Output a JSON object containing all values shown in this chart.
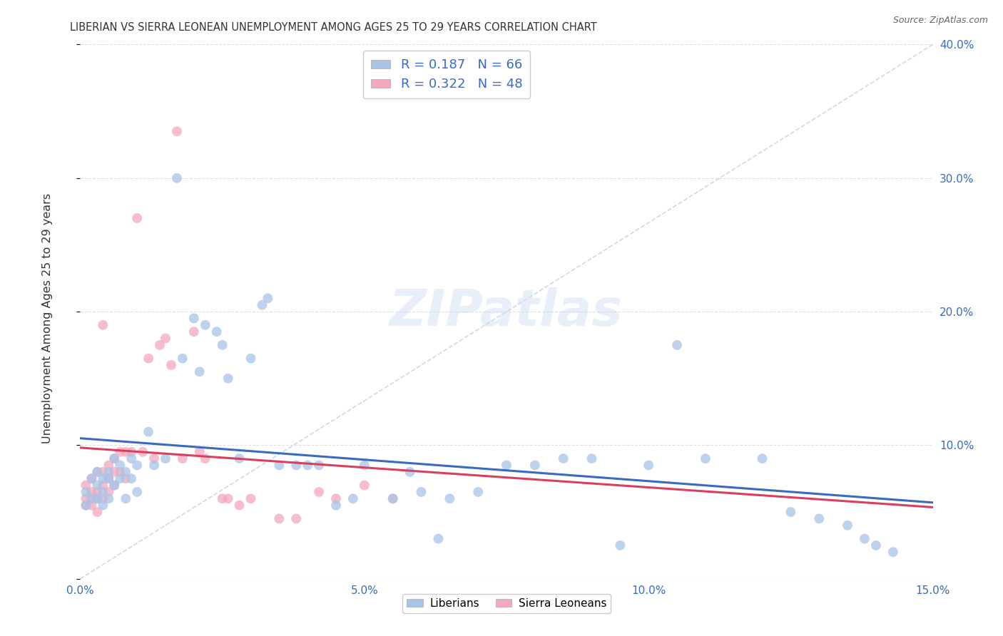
{
  "title": "LIBERIAN VS SIERRA LEONEAN UNEMPLOYMENT AMONG AGES 25 TO 29 YEARS CORRELATION CHART",
  "source": "Source: ZipAtlas.com",
  "ylabel": "Unemployment Among Ages 25 to 29 years",
  "xlim": [
    0.0,
    0.15
  ],
  "ylim": [
    0.0,
    0.4
  ],
  "xticks": [
    0.0,
    0.05,
    0.1,
    0.15
  ],
  "yticks": [
    0.0,
    0.1,
    0.2,
    0.3,
    0.4
  ],
  "xtick_labels": [
    "0.0%",
    "5.0%",
    "10.0%",
    "15.0%"
  ],
  "ytick_labels": [
    "",
    "10.0%",
    "20.0%",
    "30.0%",
    "40.0%"
  ],
  "liberian_color": "#a8c4e8",
  "sierra_leone_color": "#f4a8bc",
  "liberian_line_color": "#3a6bbf",
  "sierra_leone_line_color": "#d94060",
  "background_color": "#ffffff",
  "grid_color": "#dddddd",
  "liberian_R": 0.187,
  "liberian_N": 66,
  "sierra_leone_R": 0.322,
  "sierra_leone_N": 48,
  "liberian_x": [
    0.001,
    0.001,
    0.002,
    0.002,
    0.003,
    0.003,
    0.003,
    0.004,
    0.004,
    0.004,
    0.005,
    0.005,
    0.005,
    0.006,
    0.006,
    0.007,
    0.007,
    0.008,
    0.008,
    0.009,
    0.009,
    0.01,
    0.01,
    0.012,
    0.013,
    0.015,
    0.017,
    0.018,
    0.02,
    0.021,
    0.022,
    0.024,
    0.025,
    0.026,
    0.028,
    0.03,
    0.032,
    0.033,
    0.035,
    0.038,
    0.04,
    0.042,
    0.045,
    0.048,
    0.05,
    0.055,
    0.058,
    0.06,
    0.063,
    0.065,
    0.07,
    0.075,
    0.08,
    0.085,
    0.09,
    0.095,
    0.1,
    0.105,
    0.11,
    0.12,
    0.125,
    0.13,
    0.135,
    0.138,
    0.14,
    0.143
  ],
  "liberian_y": [
    0.065,
    0.055,
    0.075,
    0.06,
    0.08,
    0.07,
    0.06,
    0.075,
    0.065,
    0.055,
    0.08,
    0.06,
    0.075,
    0.09,
    0.07,
    0.085,
    0.075,
    0.08,
    0.06,
    0.09,
    0.075,
    0.085,
    0.065,
    0.11,
    0.085,
    0.09,
    0.3,
    0.165,
    0.195,
    0.155,
    0.19,
    0.185,
    0.175,
    0.15,
    0.09,
    0.165,
    0.205,
    0.21,
    0.085,
    0.085,
    0.085,
    0.085,
    0.055,
    0.06,
    0.085,
    0.06,
    0.08,
    0.065,
    0.03,
    0.06,
    0.065,
    0.085,
    0.085,
    0.09,
    0.09,
    0.025,
    0.085,
    0.175,
    0.09,
    0.09,
    0.05,
    0.045,
    0.04,
    0.03,
    0.025,
    0.02
  ],
  "sierra_leone_x": [
    0.001,
    0.001,
    0.001,
    0.002,
    0.002,
    0.002,
    0.002,
    0.003,
    0.003,
    0.003,
    0.003,
    0.004,
    0.004,
    0.004,
    0.004,
    0.005,
    0.005,
    0.005,
    0.006,
    0.006,
    0.006,
    0.007,
    0.007,
    0.008,
    0.008,
    0.009,
    0.01,
    0.011,
    0.012,
    0.013,
    0.014,
    0.015,
    0.016,
    0.017,
    0.018,
    0.02,
    0.021,
    0.022,
    0.025,
    0.026,
    0.028,
    0.03,
    0.035,
    0.038,
    0.042,
    0.045,
    0.05,
    0.055
  ],
  "sierra_leone_y": [
    0.06,
    0.055,
    0.07,
    0.075,
    0.065,
    0.06,
    0.055,
    0.08,
    0.065,
    0.06,
    0.05,
    0.19,
    0.08,
    0.07,
    0.06,
    0.085,
    0.075,
    0.065,
    0.09,
    0.08,
    0.07,
    0.095,
    0.08,
    0.095,
    0.075,
    0.095,
    0.27,
    0.095,
    0.165,
    0.09,
    0.175,
    0.18,
    0.16,
    0.335,
    0.09,
    0.185,
    0.095,
    0.09,
    0.06,
    0.06,
    0.055,
    0.06,
    0.045,
    0.045,
    0.065,
    0.06,
    0.07,
    0.06
  ],
  "watermark": "ZIPatlas",
  "legend_bottom_labels": [
    "Liberians",
    "Sierra Leoneans"
  ]
}
